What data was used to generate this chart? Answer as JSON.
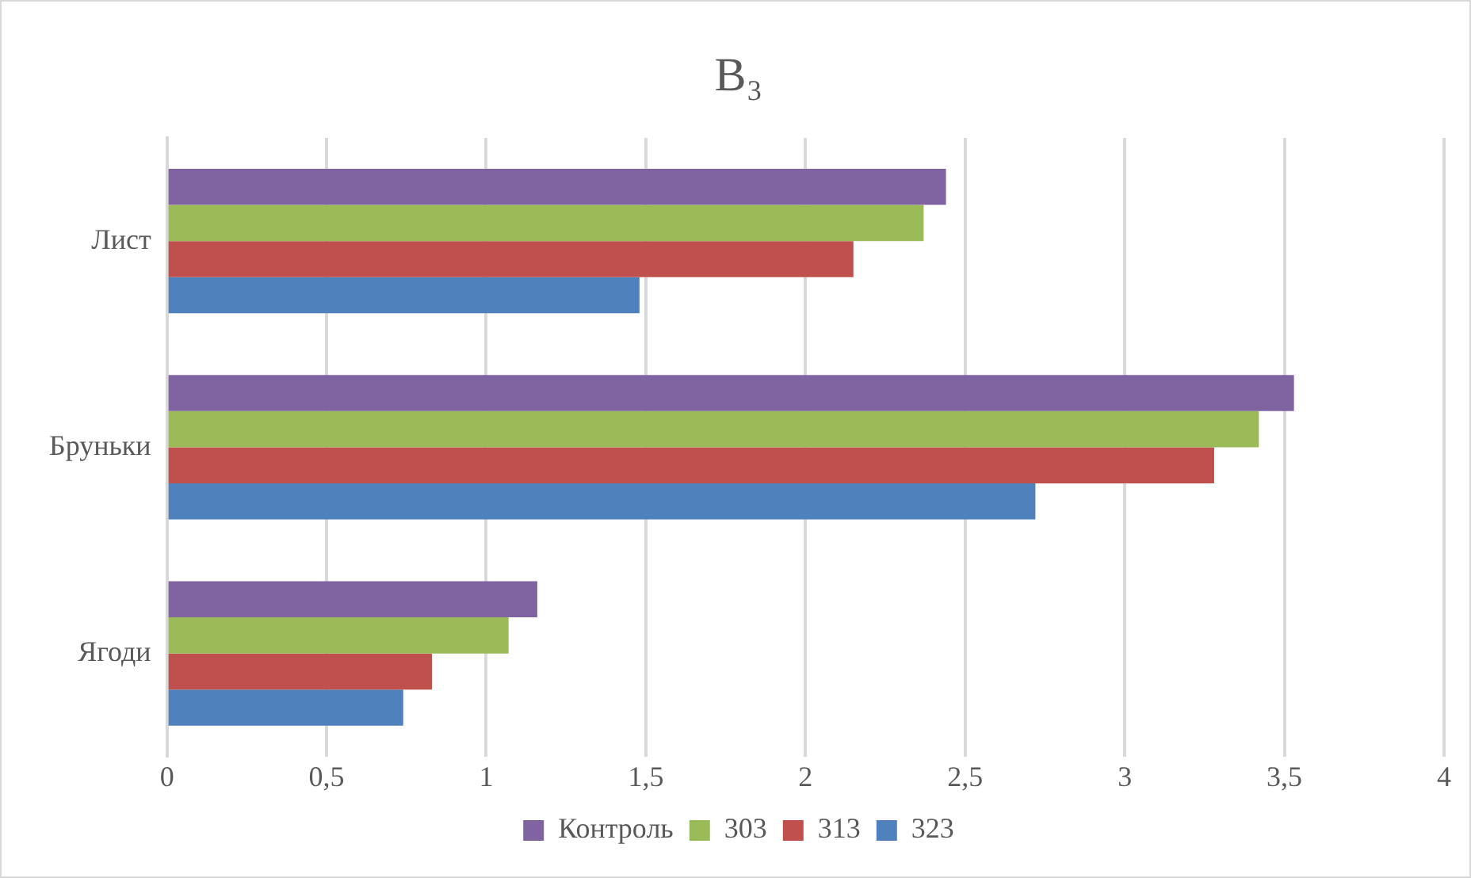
{
  "chart_data": {
    "type": "bar",
    "orientation": "horizontal",
    "title": "B₃",
    "categories": [
      "Лист",
      "Бруньки",
      "Ягоди"
    ],
    "series": [
      {
        "name": "Контроль",
        "color": "#8064a2",
        "values": [
          2.44,
          3.53,
          1.16
        ]
      },
      {
        "name": "303",
        "color": "#9bbb59",
        "values": [
          2.37,
          3.42,
          1.07
        ]
      },
      {
        "name": "313",
        "color": "#c0504d",
        "values": [
          2.15,
          3.28,
          0.83
        ]
      },
      {
        "name": "323",
        "color": "#4f81bd",
        "values": [
          1.48,
          2.72,
          0.74
        ]
      }
    ],
    "xlim": [
      0,
      4
    ],
    "xticks": [
      0,
      {
        "value": 0.5,
        "label": "0,5"
      },
      1,
      {
        "value": 1.5,
        "label": "1,5"
      },
      2,
      {
        "value": 2.5,
        "label": "2,5"
      },
      3,
      {
        "value": 3.5,
        "label": "3,5"
      },
      4
    ],
    "grid": "x",
    "legend": "bottom"
  }
}
